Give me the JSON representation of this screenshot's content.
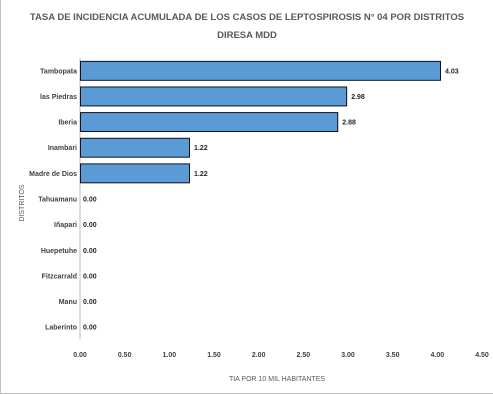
{
  "chart_data": {
    "type": "bar",
    "orientation": "horizontal",
    "title": "TASA DE INCIDENCIA ACUMULADA DE LOS CASOS DE LEPTOSPIROSIS N° 04 POR DISTRITOS",
    "subtitle": "DIRESA MDD",
    "xlabel": "TIA POR 10 MIL HABITANTES",
    "ylabel": "DISTRITOS",
    "categories": [
      "Tambopata",
      "las Piedras",
      "Iberia",
      "Inambari",
      "Madre de Dios",
      "Tahuamanu",
      "Iñapari",
      "Huepetuhe",
      "Fitzcarrald",
      "Manu",
      "Laberinto"
    ],
    "values": [
      4.03,
      2.98,
      2.88,
      1.22,
      1.22,
      0.0,
      0.0,
      0.0,
      0.0,
      0.0,
      0.0
    ],
    "value_labels": [
      "4.03",
      "2.98",
      "2.88",
      "1.22",
      "1.22",
      "0.00",
      "0.00",
      "0.00",
      "0.00",
      "0.00",
      "0.00"
    ],
    "xlim": [
      0,
      4.5
    ],
    "xticks": [
      "0.00",
      "0.50",
      "1.00",
      "1.50",
      "2.00",
      "2.50",
      "3.00",
      "3.50",
      "4.00",
      "4.50"
    ],
    "grid": false,
    "legend": "none",
    "bar_color": "#5b9bd5",
    "bar_edge_color": "#000000"
  }
}
